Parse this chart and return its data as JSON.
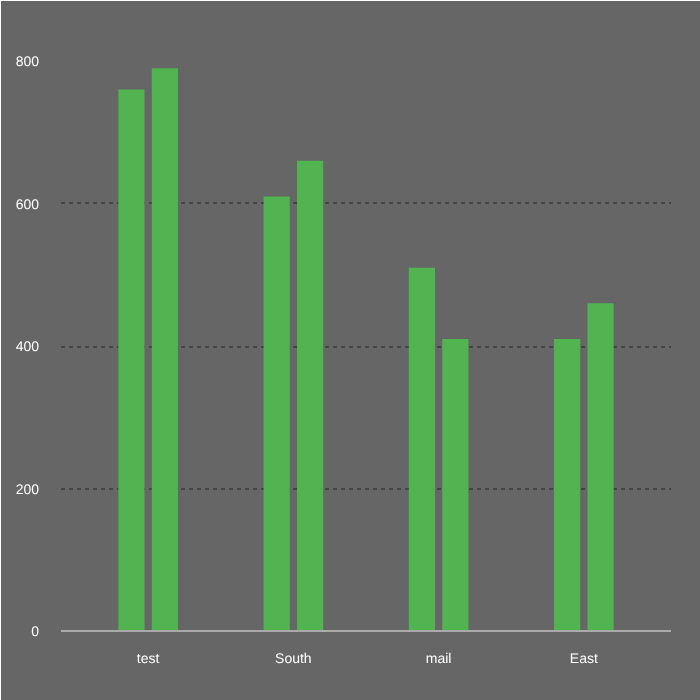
{
  "chart_data": {
    "type": "bar",
    "categories": [
      "test",
      "South",
      "mail",
      "East"
    ],
    "series": [
      {
        "color": "#52b450",
        "values": [
          760,
          610,
          510,
          410
        ]
      },
      {
        "color": "#52b450",
        "values": [
          790,
          660,
          410,
          460
        ]
      }
    ],
    "ylim": [
      0,
      800
    ],
    "yticks": [
      0,
      200,
      400,
      600,
      800
    ],
    "grid": "y"
  }
}
